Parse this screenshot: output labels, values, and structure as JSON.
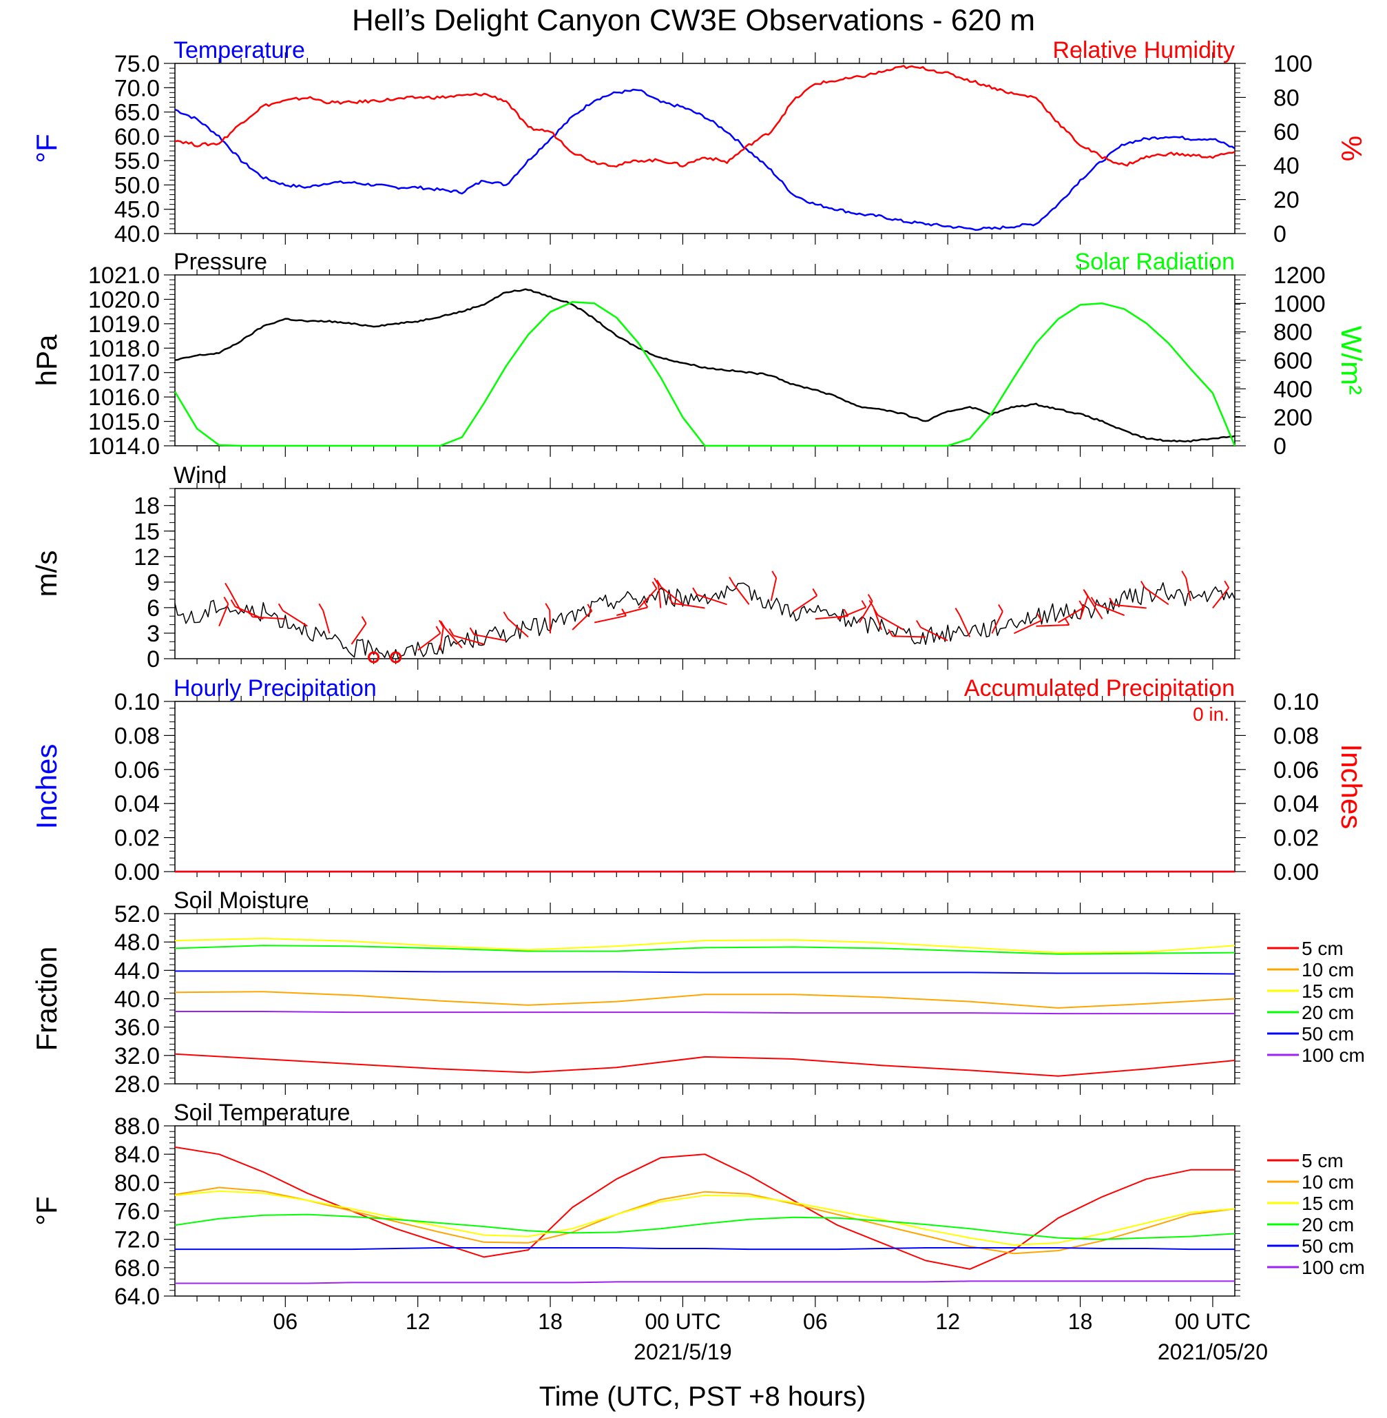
{
  "figure": {
    "title": "Hell’s Delight Canyon CW3E Observations - 620 m",
    "xlabel": "Time (UTC, PST +8 hours)",
    "x_ticks": [
      {
        "hour": 6,
        "label": "06"
      },
      {
        "hour": 12,
        "label": "12"
      },
      {
        "hour": 18,
        "label": "18"
      },
      {
        "hour": 24,
        "label": "00 UTC",
        "sublabel": "2021/5/19"
      },
      {
        "hour": 30,
        "label": "06"
      },
      {
        "hour": 36,
        "label": "12"
      },
      {
        "hour": 42,
        "label": "18"
      },
      {
        "hour": 48,
        "label": "00 UTC",
        "sublabel": "2021/05/20"
      }
    ],
    "x_range_hours": [
      1,
      49
    ]
  },
  "chart_data": [
    {
      "id": "temp_rh",
      "type": "line",
      "left_title": "Temperature",
      "right_title": "Relative Humidity",
      "ylabel": "°F",
      "ylabel_right": "%",
      "ylim": [
        40,
        75
      ],
      "ylim_right": [
        0,
        100
      ],
      "yticks": [
        "75.0",
        "70.0",
        "65.0",
        "60.0",
        "55.0",
        "50.0",
        "45.0",
        "40.0"
      ],
      "yticks_right": [
        "100",
        "80",
        "60",
        "40",
        "20",
        "0"
      ],
      "x_hours": [
        1,
        2,
        3,
        4,
        5,
        6,
        7,
        8,
        9,
        10,
        11,
        12,
        13,
        14,
        15,
        16,
        17,
        18,
        19,
        20,
        21,
        22,
        23,
        24,
        25,
        26,
        27,
        28,
        29,
        30,
        31,
        32,
        33,
        34,
        35,
        36,
        37,
        38,
        39,
        40,
        41,
        42,
        43,
        44,
        45,
        46,
        47,
        48,
        49
      ],
      "series": [
        {
          "name": "Temperature",
          "axis": "left",
          "color": "#0000ff",
          "values": [
            65.5,
            63.5,
            60,
            55,
            51.5,
            50,
            49.5,
            50.5,
            50.5,
            50,
            49.5,
            49.5,
            49,
            48.5,
            51,
            50,
            55,
            59.5,
            64,
            67.5,
            69,
            69.5,
            67,
            66,
            64,
            61,
            57,
            53,
            48,
            46,
            45,
            44,
            43.5,
            42.5,
            42,
            41.5,
            41,
            41,
            41.5,
            42,
            46,
            51,
            55,
            58.5,
            59.5,
            60,
            59.5,
            59.5,
            57.5
          ]
        },
        {
          "name": "Relative Humidity",
          "axis": "right",
          "color": "#ff0000",
          "values": [
            55,
            52,
            53,
            65,
            75,
            78,
            80,
            77,
            77,
            78,
            79,
            80,
            80,
            81,
            82,
            78,
            62,
            60,
            48,
            42,
            40,
            43,
            43,
            40,
            45,
            42,
            52,
            60,
            78,
            88,
            90,
            92,
            95,
            98,
            97,
            94,
            90,
            86,
            82,
            80,
            65,
            52,
            45,
            40,
            45,
            47,
            46,
            45,
            48
          ]
        }
      ]
    },
    {
      "id": "pressure_solar",
      "type": "line",
      "left_title": "Pressure",
      "right_title": "Solar Radiation",
      "ylabel": "hPa",
      "ylabel_right": "W/m²",
      "ylim": [
        1014,
        1021
      ],
      "ylim_right": [
        0,
        1200
      ],
      "yticks": [
        "1021.0",
        "1020.0",
        "1019.0",
        "1018.0",
        "1017.0",
        "1016.0",
        "1015.0",
        "1014.0"
      ],
      "yticks_right": [
        "1200",
        "1000",
        "800",
        "600",
        "400",
        "200",
        "0"
      ],
      "x_hours": [
        1,
        2,
        3,
        4,
        5,
        6,
        7,
        8,
        9,
        10,
        11,
        12,
        13,
        14,
        15,
        16,
        17,
        18,
        19,
        20,
        21,
        22,
        23,
        24,
        25,
        26,
        27,
        28,
        29,
        30,
        31,
        32,
        33,
        34,
        35,
        36,
        37,
        38,
        39,
        40,
        41,
        42,
        43,
        44,
        45,
        46,
        47,
        48,
        49
      ],
      "series": [
        {
          "name": "Pressure",
          "axis": "left",
          "color": "#000000",
          "values": [
            1017.5,
            1017.7,
            1017.8,
            1018.3,
            1018.9,
            1019.2,
            1019.1,
            1019.1,
            1019.0,
            1018.9,
            1019.0,
            1019.1,
            1019.3,
            1019.5,
            1019.8,
            1020.3,
            1020.4,
            1020.1,
            1019.8,
            1019.2,
            1018.5,
            1018.0,
            1017.6,
            1017.4,
            1017.2,
            1017.1,
            1017.0,
            1016.9,
            1016.5,
            1016.3,
            1016.0,
            1015.6,
            1015.5,
            1015.3,
            1015.0,
            1015.4,
            1015.6,
            1015.3,
            1015.6,
            1015.7,
            1015.5,
            1015.3,
            1015.0,
            1014.6,
            1014.3,
            1014.2,
            1014.2,
            1014.3,
            1014.4
          ]
        },
        {
          "name": "Solar Radiation",
          "axis": "right",
          "color": "#00ff00",
          "values": [
            380,
            120,
            5,
            0,
            0,
            0,
            0,
            0,
            0,
            0,
            0,
            0,
            0,
            60,
            300,
            560,
            780,
            940,
            1010,
            1000,
            900,
            720,
            480,
            200,
            0,
            0,
            0,
            0,
            0,
            0,
            0,
            0,
            0,
            0,
            0,
            0,
            50,
            230,
            480,
            720,
            890,
            990,
            1000,
            960,
            860,
            720,
            540,
            370,
            0
          ]
        }
      ]
    },
    {
      "id": "wind",
      "type": "line",
      "left_title": "Wind",
      "ylabel": "m/s",
      "ylim": [
        0,
        20
      ],
      "ytick_values": [
        0,
        3,
        6,
        9,
        12,
        15,
        18
      ],
      "yticks": [
        "0",
        "3",
        "6",
        "9",
        "12",
        "15",
        "18"
      ],
      "barb_color": "#ff0000",
      "calm_hours": [
        10,
        11
      ],
      "x_hours": [
        1,
        2,
        3,
        4,
        5,
        6,
        7,
        8,
        9,
        10,
        11,
        12,
        13,
        14,
        15,
        16,
        17,
        18,
        19,
        20,
        21,
        22,
        23,
        24,
        25,
        26,
        27,
        28,
        29,
        30,
        31,
        32,
        33,
        34,
        35,
        36,
        37,
        38,
        39,
        40,
        41,
        42,
        43,
        44,
        45,
        46,
        47,
        48,
        49
      ],
      "series": [
        {
          "name": "Wind Speed",
          "color": "#000000",
          "values": [
            5.5,
            4.5,
            6.5,
            5.5,
            5.5,
            4.5,
            3.5,
            2,
            1,
            1.5,
            0.5,
            1,
            1.5,
            2,
            2.5,
            3,
            3.5,
            4,
            5,
            6,
            7,
            7,
            7.5,
            7,
            7.5,
            7.5,
            8,
            6.5,
            5.5,
            5.5,
            5,
            4,
            4,
            3,
            2.5,
            3,
            3.5,
            3.5,
            4.5,
            5,
            5.5,
            5.5,
            6,
            7,
            7.5,
            8,
            7,
            7.5,
            7
          ]
        }
      ]
    },
    {
      "id": "precip",
      "type": "line",
      "left_title": "Hourly Precipitation",
      "right_title": "Accumulated Precipitation",
      "annotation": "0 in.",
      "ylabel": "Inches",
      "ylabel_right": "Inches",
      "ylim": [
        0,
        0.1
      ],
      "ylim_right": [
        0,
        0.1
      ],
      "yticks": [
        "0.10",
        "0.08",
        "0.06",
        "0.04",
        "0.02",
        "0.00"
      ],
      "yticks_right": [
        "0.10",
        "0.08",
        "0.06",
        "0.04",
        "0.02",
        "0.00"
      ],
      "x_hours": [
        1,
        49
      ],
      "series": [
        {
          "name": "Hourly Precipitation",
          "axis": "left",
          "color": "#0000ff",
          "values": [
            0,
            0
          ]
        },
        {
          "name": "Accumulated Precipitation",
          "axis": "right",
          "color": "#ff0000",
          "values": [
            0,
            0
          ]
        }
      ]
    },
    {
      "id": "soil_moisture",
      "type": "line",
      "left_title": "Soil Moisture",
      "ylabel": "Fraction",
      "ylim": [
        28,
        52
      ],
      "yticks": [
        "52.0",
        "48.0",
        "44.0",
        "40.0",
        "36.0",
        "32.0",
        "28.0"
      ],
      "legend": "right",
      "x_hours": [
        1,
        5,
        9,
        13,
        17,
        21,
        25,
        29,
        33,
        37,
        41,
        45,
        49
      ],
      "series": [
        {
          "name": "5 cm",
          "color": "#ff0000",
          "values": [
            32.2,
            31.5,
            30.8,
            30.1,
            29.6,
            30.3,
            31.8,
            31.5,
            30.6,
            29.9,
            29.1,
            30.1,
            31.3
          ]
        },
        {
          "name": "10 cm",
          "color": "#ffa500",
          "values": [
            40.9,
            41,
            40.5,
            39.7,
            39.1,
            39.6,
            40.6,
            40.6,
            40.2,
            39.6,
            38.7,
            39.3,
            40
          ]
        },
        {
          "name": "15 cm",
          "color": "#ffff00",
          "values": [
            48.2,
            48.5,
            48.1,
            47.4,
            46.9,
            47.4,
            48.2,
            48.3,
            47.9,
            47.2,
            46.5,
            46.6,
            47.5
          ]
        },
        {
          "name": "20 cm",
          "color": "#00ff00",
          "values": [
            47.1,
            47.5,
            47.4,
            47.1,
            46.7,
            46.7,
            47.2,
            47.3,
            47.1,
            46.7,
            46.3,
            46.4,
            46.5
          ]
        },
        {
          "name": "50 cm",
          "color": "#0000ff",
          "values": [
            43.9,
            43.9,
            43.9,
            43.8,
            43.8,
            43.8,
            43.7,
            43.7,
            43.7,
            43.7,
            43.6,
            43.6,
            43.5
          ]
        },
        {
          "name": "100 cm",
          "color": "#a020f0",
          "values": [
            38.2,
            38.2,
            38.1,
            38.1,
            38.1,
            38.1,
            38.1,
            38,
            38,
            38,
            37.9,
            37.9,
            37.9
          ]
        }
      ]
    },
    {
      "id": "soil_temperature",
      "type": "line",
      "left_title": "Soil Temperature",
      "ylabel": "°F",
      "ylim": [
        64,
        88
      ],
      "yticks": [
        "88.0",
        "84.0",
        "80.0",
        "76.0",
        "72.0",
        "68.0",
        "64.0"
      ],
      "legend": "right",
      "x_hours": [
        1,
        3,
        5,
        7,
        9,
        11,
        13,
        15,
        17,
        19,
        21,
        23,
        25,
        27,
        29,
        31,
        33,
        35,
        37,
        39,
        41,
        43,
        45,
        47,
        49
      ],
      "series": [
        {
          "name": "5 cm",
          "color": "#ff0000",
          "values": [
            85,
            84,
            81.5,
            78.5,
            76,
            73.5,
            71.5,
            69.5,
            70.5,
            76.5,
            80.5,
            83.5,
            84,
            81,
            77.5,
            74,
            71.5,
            69,
            67.8,
            70.5,
            75,
            78,
            80.5,
            81.8,
            81.8
          ]
        },
        {
          "name": "10 cm",
          "color": "#ffa500",
          "values": [
            78.3,
            79.3,
            78.8,
            77.5,
            76,
            74.5,
            73,
            71.6,
            71.5,
            73,
            75.5,
            77.6,
            78.7,
            78.4,
            77,
            75.5,
            74,
            72.5,
            71,
            70,
            70.4,
            71.8,
            73.6,
            75.5,
            76.3
          ]
        },
        {
          "name": "15 cm",
          "color": "#ffff00",
          "values": [
            78.2,
            78.8,
            78.5,
            77.5,
            76.3,
            75,
            73.8,
            72.6,
            72.4,
            73.5,
            75.5,
            77.3,
            78.2,
            78.1,
            77.2,
            76,
            74.8,
            73.4,
            72.2,
            71.2,
            71.5,
            72.8,
            74.3,
            75.8,
            76.3
          ]
        },
        {
          "name": "20 cm",
          "color": "#00ff00",
          "values": [
            74,
            74.9,
            75.4,
            75.5,
            75.2,
            74.8,
            74.3,
            73.8,
            73.2,
            72.9,
            73,
            73.5,
            74.2,
            74.8,
            75.1,
            75,
            74.6,
            74.1,
            73.5,
            72.8,
            72.2,
            72,
            72.2,
            72.4,
            72.8
          ]
        },
        {
          "name": "50 cm",
          "color": "#0000ff",
          "values": [
            70.6,
            70.6,
            70.6,
            70.6,
            70.6,
            70.7,
            70.8,
            70.8,
            70.8,
            70.8,
            70.8,
            70.7,
            70.7,
            70.6,
            70.6,
            70.6,
            70.7,
            70.8,
            70.8,
            70.8,
            70.8,
            70.7,
            70.7,
            70.6,
            70.6
          ]
        },
        {
          "name": "100 cm",
          "color": "#a020f0",
          "values": [
            65.8,
            65.8,
            65.8,
            65.8,
            65.9,
            65.9,
            65.9,
            65.9,
            65.9,
            65.9,
            66,
            66,
            66,
            66,
            66,
            66,
            66,
            66,
            66.1,
            66.1,
            66.1,
            66.1,
            66.1,
            66.1,
            66.1
          ]
        }
      ]
    }
  ]
}
